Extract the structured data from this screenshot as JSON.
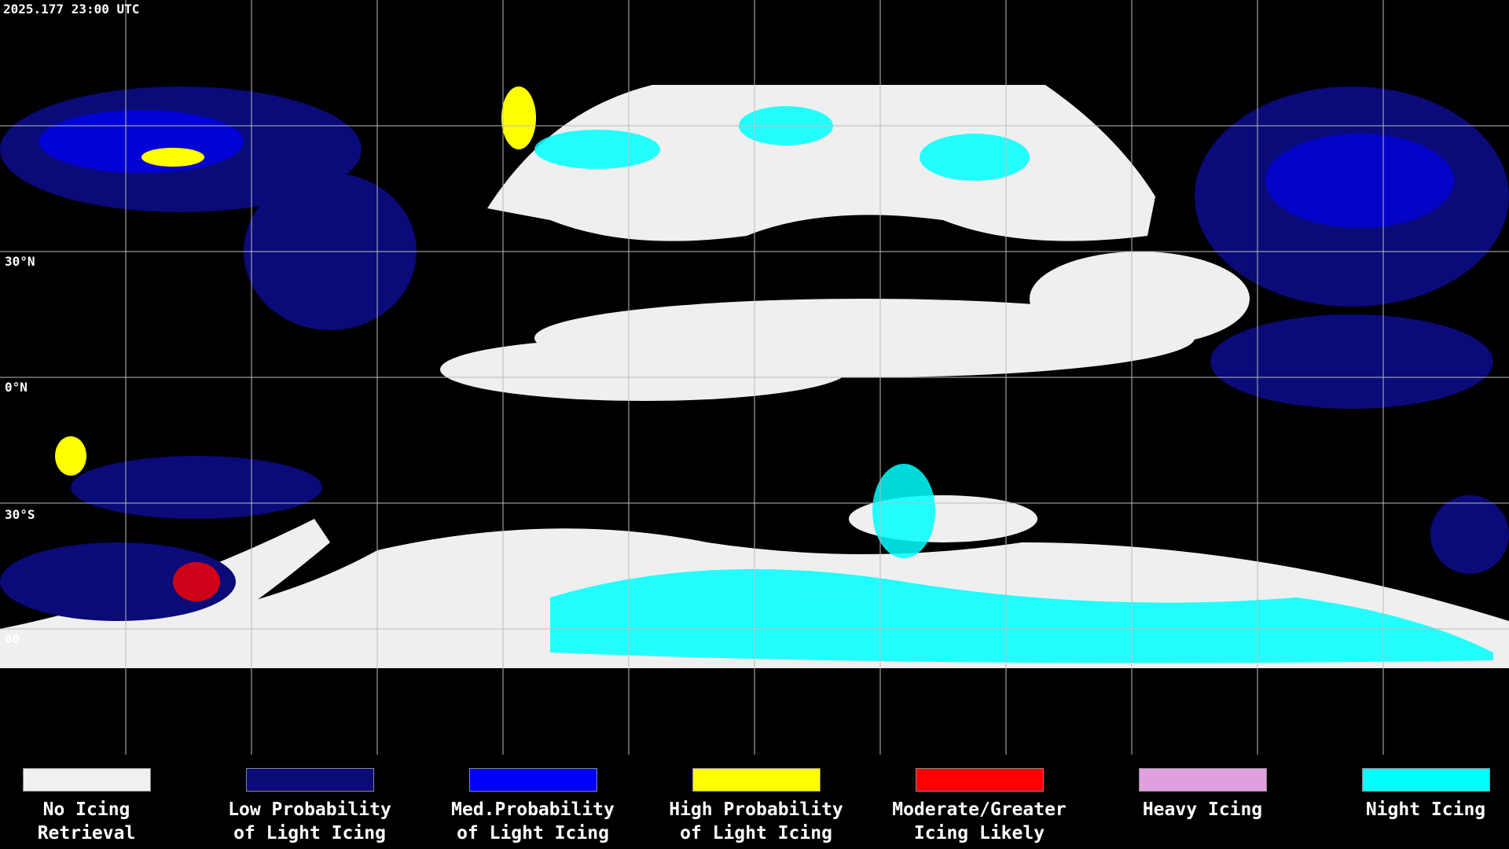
{
  "header": {
    "timestamp": "2025.177 23:00 UTC"
  },
  "map": {
    "latitude_labels": [
      "30°N",
      "0°N",
      "30°S",
      "60"
    ]
  },
  "legend": {
    "items": [
      {
        "lines": [
          "No Icing",
          "Retrieval"
        ],
        "color": "#f0f0f0"
      },
      {
        "lines": [
          "Low Probability",
          "of Light Icing"
        ],
        "color": "#0a0a78"
      },
      {
        "lines": [
          "Med.Probability",
          "of Light Icing"
        ],
        "color": "#0000ff"
      },
      {
        "lines": [
          "High Probability",
          "of Light Icing"
        ],
        "color": "#ffff00"
      },
      {
        "lines": [
          "Moderate/Greater",
          "Icing Likely"
        ],
        "color": "#ff0000"
      },
      {
        "lines": [
          "Heavy Icing"
        ],
        "color": "#e0a0e0"
      },
      {
        "lines": [
          "Night Icing"
        ],
        "color": "#00ffff"
      }
    ]
  }
}
